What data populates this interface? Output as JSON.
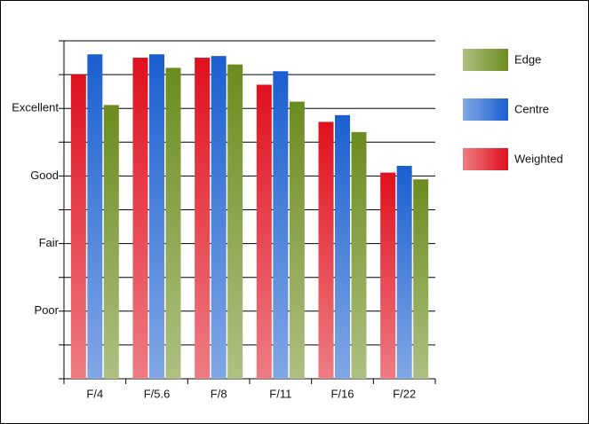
{
  "chart_data": {
    "type": "bar",
    "categories": [
      "F/4",
      "F/5.6",
      "F/8",
      "F/11",
      "F/16",
      "F/22"
    ],
    "series": [
      {
        "name": "Weighted",
        "color": "#e0101e",
        "values": [
          9.0,
          9.5,
          9.5,
          8.7,
          7.6,
          6.1
        ]
      },
      {
        "name": "Centre",
        "color": "#1a5fd0",
        "values": [
          9.6,
          9.6,
          9.55,
          9.1,
          7.8,
          6.3
        ]
      },
      {
        "name": "Edge",
        "color": "#6b8c1e",
        "values": [
          8.1,
          9.2,
          9.3,
          8.2,
          7.3,
          5.9
        ]
      }
    ],
    "ylim": [
      0,
      10
    ],
    "yticks": [
      {
        "value": 0,
        "label": null
      },
      {
        "value": 1,
        "label": null
      },
      {
        "value": 2,
        "label": "Poor"
      },
      {
        "value": 3,
        "label": null
      },
      {
        "value": 4,
        "label": "Fair"
      },
      {
        "value": 5,
        "label": null
      },
      {
        "value": 6,
        "label": "Good"
      },
      {
        "value": 7,
        "label": null
      },
      {
        "value": 8,
        "label": "Excellent"
      },
      {
        "value": 9,
        "label": null
      },
      {
        "value": 10,
        "label": null
      }
    ],
    "grid": true,
    "legend": "right"
  }
}
